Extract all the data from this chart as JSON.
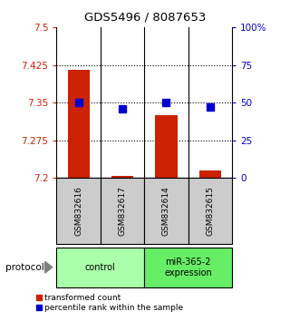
{
  "title": "GDS5496 / 8087653",
  "samples": [
    "GSM832616",
    "GSM832617",
    "GSM832614",
    "GSM832615"
  ],
  "bar_values": [
    7.415,
    7.205,
    7.325,
    7.215
  ],
  "bar_base": 7.2,
  "percentile_values": [
    50,
    46,
    50,
    47
  ],
  "percentile_scale_min": 0,
  "percentile_scale_max": 100,
  "y_min": 7.2,
  "y_max": 7.5,
  "y_ticks": [
    7.2,
    7.275,
    7.35,
    7.425,
    7.5
  ],
  "y_tick_labels": [
    "7.2",
    "7.275",
    "7.35",
    "7.425",
    "7.5"
  ],
  "right_y_ticks": [
    0,
    25,
    50,
    75,
    100
  ],
  "right_y_tick_labels": [
    "0",
    "25",
    "50",
    "75",
    "100%"
  ],
  "bar_color": "#cc2200",
  "marker_color": "#0000cc",
  "groups": [
    {
      "label": "control",
      "samples": [
        0,
        1
      ],
      "color": "#aaffaa"
    },
    {
      "label": "miR-365-2\nexpression",
      "samples": [
        2,
        3
      ],
      "color": "#66ee66"
    }
  ],
  "protocol_label": "protocol",
  "legend_bar_label": "transformed count",
  "legend_marker_label": "percentile rank within the sample",
  "sample_box_color": "#cccccc",
  "bar_width": 0.5,
  "marker_size": 6
}
